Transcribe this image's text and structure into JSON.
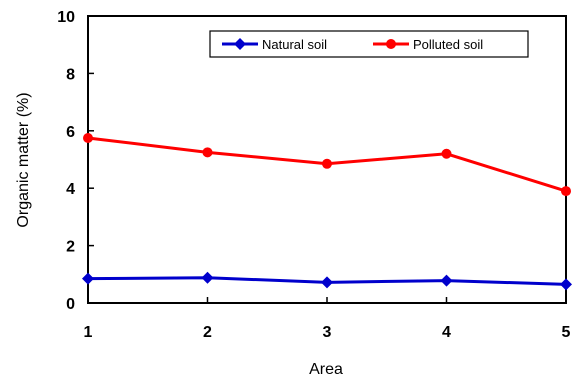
{
  "chart_data": {
    "type": "line",
    "xlabel": "Area",
    "ylabel": "Organic matter (%)",
    "x": [
      1,
      2,
      3,
      4,
      5
    ],
    "xlim": [
      1,
      5
    ],
    "ylim": [
      0,
      10
    ],
    "yticks": [
      0,
      2,
      4,
      6,
      8,
      10
    ],
    "grid": false,
    "legend_position": "top-right",
    "series": [
      {
        "name": "Natural soil",
        "color": "#0000cc",
        "marker": "diamond",
        "values": [
          0.85,
          0.88,
          0.72,
          0.78,
          0.65
        ]
      },
      {
        "name": "Polluted soil",
        "color": "#ff0000",
        "marker": "circle",
        "values": [
          5.75,
          5.25,
          4.85,
          5.2,
          3.9
        ]
      }
    ]
  }
}
